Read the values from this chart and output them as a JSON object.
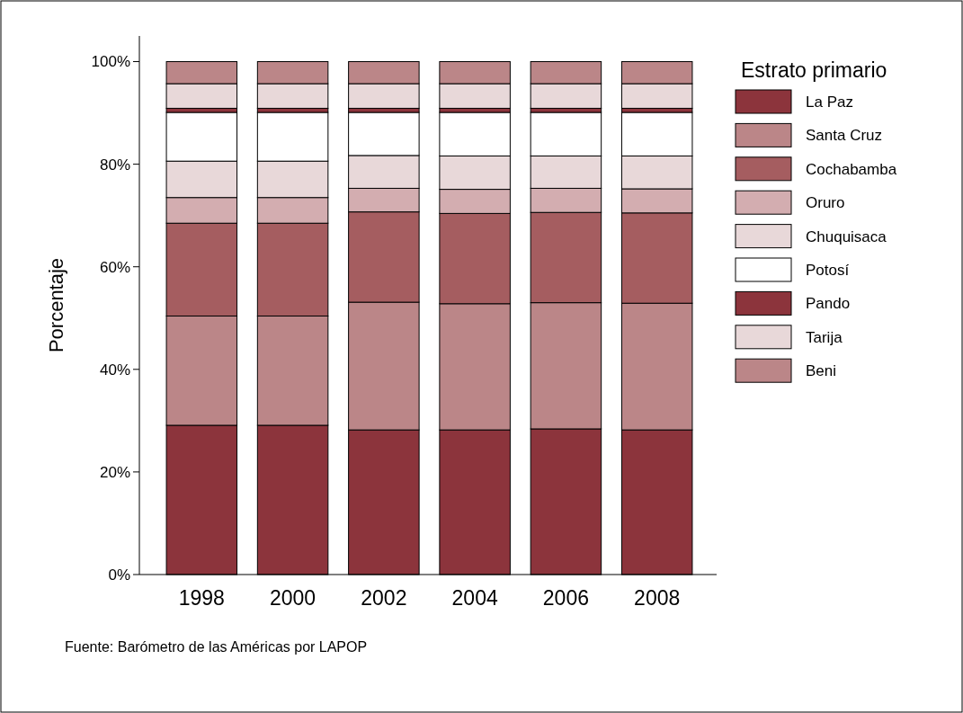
{
  "chart_data": {
    "type": "bar",
    "stacked": true,
    "ylabel": "Porcentaje",
    "legend_title": "Estrato primario",
    "legend": "top right",
    "annotations": [
      "Fuente: Barómetro de las Américas por LAPOP"
    ],
    "categories": [
      "1998",
      "2000",
      "2002",
      "2004",
      "2006",
      "2008"
    ],
    "ylim": [
      0,
      105
    ],
    "yticks": [
      {
        "value": 0,
        "label": "0%"
      },
      {
        "value": 20,
        "label": "20%"
      },
      {
        "value": 40,
        "label": "40%"
      },
      {
        "value": 60,
        "label": "60%"
      },
      {
        "value": 80,
        "label": "80%"
      },
      {
        "value": 100,
        "label": "100%"
      }
    ],
    "series": [
      {
        "name": "La Paz",
        "color": "#8c343c",
        "values": [
          29.1,
          29.1,
          28.2,
          28.2,
          28.4,
          28.2
        ]
      },
      {
        "name": "Santa Cruz",
        "color": "#bb8688",
        "values": [
          21.3,
          21.3,
          24.9,
          24.6,
          24.6,
          24.7
        ]
      },
      {
        "name": "Cochabamba",
        "color": "#a55d60",
        "values": [
          18.1,
          18.1,
          17.6,
          17.6,
          17.6,
          17.6
        ]
      },
      {
        "name": "Oruro",
        "color": "#d3adb0",
        "values": [
          5.0,
          5.0,
          4.6,
          4.7,
          4.7,
          4.7
        ]
      },
      {
        "name": "Chuquisaca",
        "color": "#e8d8d9",
        "values": [
          7.1,
          7.1,
          6.4,
          6.5,
          6.3,
          6.4
        ]
      },
      {
        "name": "Potosí",
        "color": "#ffffff",
        "values": [
          9.5,
          9.5,
          8.4,
          8.5,
          8.5,
          8.5
        ]
      },
      {
        "name": "Pando",
        "color": "#8c343c",
        "values": [
          0.8,
          0.8,
          0.8,
          0.8,
          0.8,
          0.8
        ]
      },
      {
        "name": "Tarija",
        "color": "#e8d8d9",
        "values": [
          4.8,
          4.8,
          4.8,
          4.8,
          4.8,
          4.8
        ]
      },
      {
        "name": "Beni",
        "color": "#bb8688",
        "values": [
          4.3,
          4.3,
          4.3,
          4.3,
          4.3,
          4.3
        ]
      }
    ]
  }
}
